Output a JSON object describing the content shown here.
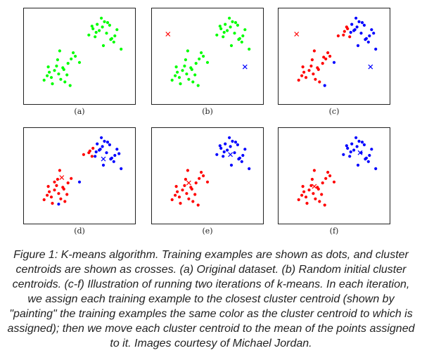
{
  "chart_data": [
    {
      "type": "scatter",
      "label": "(a)",
      "xlim": [
        0,
        10
      ],
      "ylim": [
        0,
        10
      ],
      "grid": false,
      "series": [
        {
          "color": "#00ff00",
          "marker": "dot",
          "x": [
            1.6,
            1.9,
            2.1,
            2.3,
            2.6,
            2.8,
            3.0,
            3.2,
            3.4,
            3.6,
            3.9,
            4.2,
            4.6,
            5.0,
            2.4,
            2.9,
            3.5,
            4.1,
            4.4,
            3.8,
            3.1,
            2.0,
            5.9,
            6.3,
            6.5,
            6.7,
            6.9,
            7.2,
            7.4,
            7.6,
            7.9,
            8.1,
            8.3,
            8.6,
            9.0,
            6.6,
            7.1,
            7.7,
            8.0,
            8.4,
            7.3,
            6.2
          ],
          "y": [
            2.3,
            2.8,
            3.2,
            2.6,
            3.4,
            3.9,
            3.0,
            2.4,
            3.7,
            2.1,
            4.2,
            4.7,
            5.0,
            4.3,
            1.9,
            4.6,
            3.5,
            1.7,
            5.4,
            2.9,
            5.6,
            3.8,
            7.4,
            8.1,
            7.2,
            8.6,
            7.9,
            8.3,
            8.9,
            7.6,
            8.5,
            7.0,
            6.6,
            8.0,
            5.8,
            7.7,
            9.3,
            8.8,
            6.9,
            7.3,
            6.2,
            8.4
          ]
        }
      ],
      "centroids": []
    },
    {
      "type": "scatter",
      "label": "(b)",
      "xlim": [
        0,
        10
      ],
      "ylim": [
        0,
        10
      ],
      "grid": false,
      "series": [
        {
          "color": "#00ff00",
          "marker": "dot",
          "x": [
            1.6,
            1.9,
            2.1,
            2.3,
            2.6,
            2.8,
            3.0,
            3.2,
            3.4,
            3.6,
            3.9,
            4.2,
            4.6,
            5.0,
            2.4,
            2.9,
            3.5,
            4.1,
            4.4,
            3.8,
            3.1,
            2.0,
            5.9,
            6.3,
            6.5,
            6.7,
            6.9,
            7.2,
            7.4,
            7.6,
            7.9,
            8.1,
            8.3,
            8.6,
            9.0,
            6.6,
            7.1,
            7.7,
            8.0,
            8.4,
            7.3,
            6.2
          ],
          "y": [
            2.3,
            2.8,
            3.2,
            2.6,
            3.4,
            3.9,
            3.0,
            2.4,
            3.7,
            2.1,
            4.2,
            4.7,
            5.0,
            4.3,
            1.9,
            4.6,
            3.5,
            1.7,
            5.4,
            2.9,
            5.6,
            3.8,
            7.4,
            8.1,
            7.2,
            8.6,
            7.9,
            8.3,
            8.9,
            7.6,
            8.5,
            7.0,
            6.6,
            8.0,
            5.8,
            7.7,
            9.3,
            8.8,
            6.9,
            7.3,
            6.2,
            8.4
          ]
        }
      ],
      "centroids": [
        {
          "color": "#ff0000",
          "x": 1.2,
          "y": 7.5
        },
        {
          "color": "#0000ff",
          "x": 8.6,
          "y": 3.8
        }
      ]
    },
    {
      "type": "scatter",
      "label": "(c)",
      "xlim": [
        0,
        10
      ],
      "ylim": [
        0,
        10
      ],
      "grid": false,
      "series": [
        {
          "color": "#ff0000",
          "marker": "dot",
          "x": [
            1.6,
            1.9,
            2.1,
            2.3,
            2.6,
            2.8,
            3.0,
            3.2,
            3.4,
            3.6,
            3.9,
            4.2,
            4.6,
            2.9,
            3.5,
            4.4,
            3.1,
            2.0,
            4.0,
            5.4,
            5.9,
            6.3,
            6.0,
            6.5,
            6.2
          ],
          "y": [
            2.3,
            2.8,
            3.2,
            2.6,
            3.4,
            3.9,
            3.0,
            2.4,
            3.7,
            2.1,
            4.2,
            4.7,
            5.0,
            4.6,
            3.5,
            5.4,
            5.6,
            3.8,
            4.9,
            7.3,
            7.4,
            8.1,
            7.8,
            7.2,
            8.3
          ]
        },
        {
          "color": "#0000ff",
          "marker": "dot",
          "x": [
            6.7,
            6.9,
            7.2,
            7.4,
            7.6,
            7.9,
            8.1,
            8.3,
            8.6,
            9.0,
            6.6,
            7.1,
            7.7,
            8.0,
            8.4,
            7.3,
            5.0,
            4.1,
            8.8,
            7.0
          ],
          "y": [
            8.6,
            7.9,
            8.3,
            8.9,
            7.6,
            8.5,
            7.0,
            6.6,
            8.0,
            5.8,
            7.7,
            9.3,
            8.8,
            6.9,
            7.3,
            6.2,
            4.3,
            1.7,
            7.6,
            8.0
          ]
        }
      ],
      "centroids": [
        {
          "color": "#ff0000",
          "x": 1.4,
          "y": 7.5
        },
        {
          "color": "#0000ff",
          "x": 8.5,
          "y": 3.8
        }
      ]
    },
    {
      "type": "scatter",
      "label": "(d)",
      "xlim": [
        0,
        10
      ],
      "ylim": [
        0,
        10
      ],
      "grid": false,
      "series": [
        {
          "color": "#ff0000",
          "marker": "dot",
          "x": [
            1.6,
            1.9,
            2.1,
            2.3,
            2.6,
            2.8,
            3.0,
            3.2,
            3.4,
            3.6,
            3.9,
            4.2,
            2.4,
            2.9,
            3.5,
            3.1,
            2.0,
            3.8,
            5.4,
            5.9,
            6.3,
            6.0,
            6.2,
            2.6
          ],
          "y": [
            2.3,
            2.8,
            3.2,
            2.6,
            3.4,
            3.9,
            3.0,
            2.4,
            3.7,
            2.1,
            4.2,
            4.7,
            1.9,
            4.6,
            3.5,
            5.6,
            3.8,
            2.9,
            7.4,
            7.6,
            8.1,
            7.8,
            7.2,
            4.3
          ]
        },
        {
          "color": "#0000ff",
          "marker": "dot",
          "x": [
            6.7,
            6.9,
            7.2,
            7.4,
            7.6,
            7.9,
            8.1,
            8.3,
            8.6,
            9.0,
            6.6,
            7.1,
            7.7,
            8.0,
            8.4,
            7.3,
            5.0,
            3.0,
            8.8,
            7.0,
            6.5
          ],
          "y": [
            8.6,
            7.9,
            8.3,
            8.9,
            7.6,
            8.5,
            7.0,
            6.6,
            8.0,
            5.8,
            7.7,
            9.3,
            8.8,
            6.9,
            7.3,
            6.2,
            4.3,
            1.8,
            7.5,
            8.0,
            7.2
          ]
        }
      ],
      "centroids": [
        {
          "color": "#ff0000",
          "x": 3.3,
          "y": 4.8
        },
        {
          "color": "#0000ff",
          "x": 7.3,
          "y": 6.9
        }
      ]
    },
    {
      "type": "scatter",
      "label": "(e)",
      "xlim": [
        0,
        10
      ],
      "ylim": [
        0,
        10
      ],
      "grid": false,
      "series": [
        {
          "color": "#ff0000",
          "marker": "dot",
          "x": [
            1.6,
            1.9,
            2.1,
            2.3,
            2.6,
            2.8,
            3.0,
            3.2,
            3.4,
            3.6,
            3.9,
            4.2,
            4.6,
            5.0,
            2.4,
            2.9,
            3.5,
            4.1,
            4.4,
            3.8,
            3.1,
            2.0
          ],
          "y": [
            2.3,
            2.8,
            3.2,
            2.6,
            3.4,
            3.9,
            3.0,
            2.4,
            3.7,
            2.1,
            4.2,
            4.7,
            5.0,
            4.3,
            1.9,
            4.6,
            3.5,
            1.7,
            5.4,
            2.9,
            5.6,
            3.8
          ]
        },
        {
          "color": "#0000ff",
          "marker": "dot",
          "x": [
            5.9,
            6.3,
            6.5,
            6.7,
            6.9,
            7.2,
            7.4,
            7.6,
            7.9,
            8.1,
            8.3,
            8.6,
            9.0,
            6.6,
            7.1,
            7.7,
            8.0,
            8.4,
            7.3,
            6.2
          ],
          "y": [
            7.4,
            8.1,
            7.2,
            8.6,
            7.9,
            8.3,
            8.9,
            7.6,
            8.5,
            7.0,
            6.6,
            8.0,
            5.8,
            7.7,
            9.3,
            8.8,
            6.9,
            7.3,
            6.2,
            8.4
          ]
        }
      ],
      "centroids": [
        {
          "color": "#ff0000",
          "x": 3.2,
          "y": 4.2
        },
        {
          "color": "#0000ff",
          "x": 7.2,
          "y": 7.4
        }
      ]
    },
    {
      "type": "scatter",
      "label": "(f)",
      "xlim": [
        0,
        10
      ],
      "ylim": [
        0,
        10
      ],
      "grid": false,
      "series": [
        {
          "color": "#ff0000",
          "marker": "dot",
          "x": [
            1.6,
            1.9,
            2.1,
            2.3,
            2.6,
            2.8,
            3.0,
            3.2,
            3.4,
            3.6,
            3.9,
            4.2,
            4.6,
            5.0,
            2.4,
            2.9,
            3.5,
            4.1,
            4.4,
            3.8,
            3.1,
            2.0
          ],
          "y": [
            2.3,
            2.8,
            3.2,
            2.6,
            3.4,
            3.9,
            3.0,
            2.4,
            3.7,
            2.1,
            4.2,
            4.7,
            5.0,
            4.3,
            1.9,
            4.6,
            3.5,
            1.7,
            5.4,
            2.9,
            5.6,
            3.8
          ]
        },
        {
          "color": "#0000ff",
          "marker": "dot",
          "x": [
            5.9,
            6.3,
            6.5,
            6.7,
            6.9,
            7.2,
            7.4,
            7.6,
            7.9,
            8.1,
            8.3,
            8.6,
            9.0,
            6.6,
            7.1,
            7.7,
            8.0,
            8.4,
            7.3,
            6.2
          ],
          "y": [
            7.4,
            8.1,
            7.2,
            8.6,
            7.9,
            8.3,
            8.9,
            7.6,
            8.5,
            7.0,
            6.6,
            8.0,
            5.8,
            7.7,
            9.3,
            8.8,
            6.9,
            7.3,
            6.2,
            8.4
          ]
        }
      ],
      "centroids": [
        {
          "color": "#ff0000",
          "x": 3.1,
          "y": 3.8
        },
        {
          "color": "#0000ff",
          "x": 7.5,
          "y": 7.6
        }
      ]
    }
  ],
  "caption": {
    "text": "Figure 1: K-means algorithm. Training examples are shown as dots, and cluster centroids are shown as crosses. (a) Original dataset. (b) Random initial cluster centroids. (c-f) Illustration of running two iterations of k-means. In each iteration, we assign each training example to the closest cluster centroid (shown by \"painting\" the training examples the same color as the cluster centroid to which is assigned); then we move each cluster centroid to the mean of the points assigned to it. Images courtesy of Michael Jordan."
  }
}
